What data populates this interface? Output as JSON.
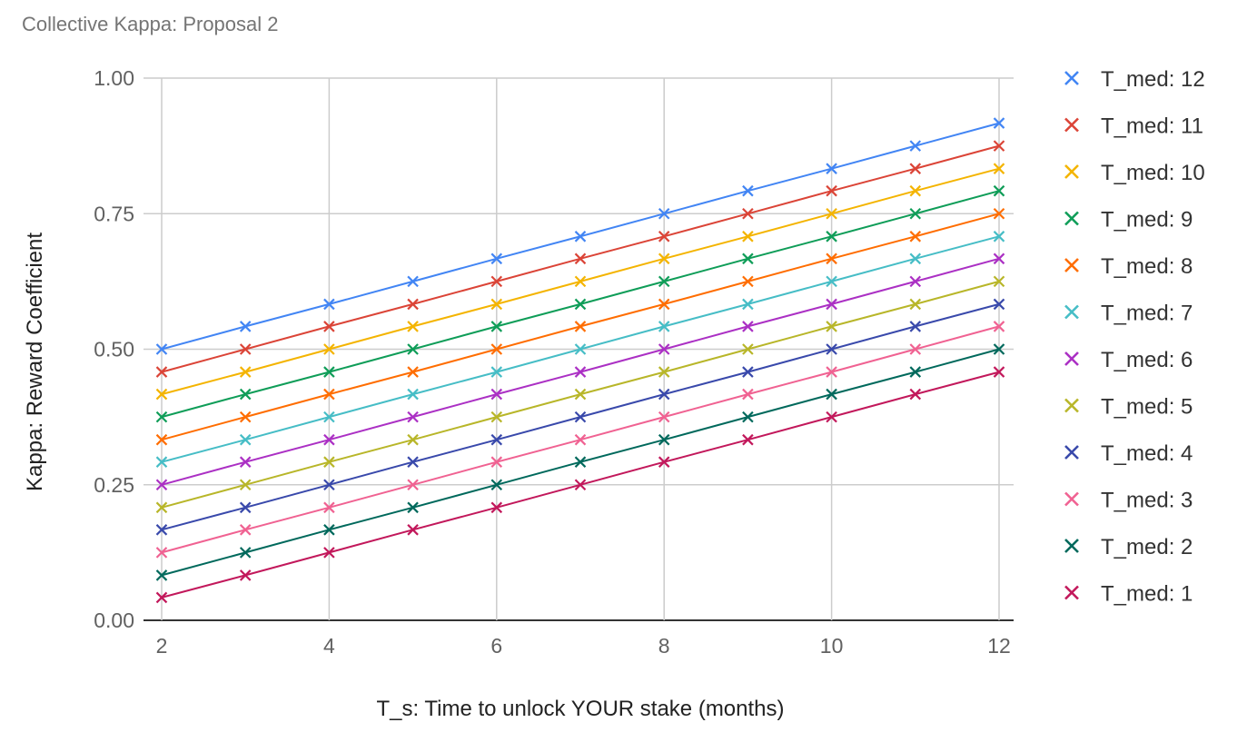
{
  "chart_data": {
    "type": "line",
    "title": "Collective Kappa: Proposal 2",
    "xlabel": "T_s: Time to unlock YOUR stake (months)",
    "ylabel": "Kappa: Reward Coefficient",
    "x": [
      2,
      3,
      4,
      5,
      6,
      7,
      8,
      9,
      10,
      11,
      12
    ],
    "xlim": [
      2,
      12
    ],
    "ylim": [
      0,
      1
    ],
    "x_ticks": [
      "2",
      "4",
      "6",
      "8",
      "10",
      "12"
    ],
    "y_ticks": [
      "0.00",
      "0.25",
      "0.50",
      "0.75",
      "1.00"
    ],
    "grid": true,
    "marker": "x",
    "legend_position": "right",
    "series": [
      {
        "name": "T_med: 12",
        "color": "#4285f4",
        "values": [
          0.5,
          0.542,
          0.583,
          0.625,
          0.667,
          0.708,
          0.75,
          0.792,
          0.833,
          0.875,
          0.917
        ]
      },
      {
        "name": "T_med: 11",
        "color": "#db4437",
        "values": [
          0.458,
          0.5,
          0.542,
          0.583,
          0.625,
          0.667,
          0.708,
          0.75,
          0.792,
          0.833,
          0.875
        ]
      },
      {
        "name": "T_med: 10",
        "color": "#f4b400",
        "values": [
          0.417,
          0.458,
          0.5,
          0.542,
          0.583,
          0.625,
          0.667,
          0.708,
          0.75,
          0.792,
          0.833
        ]
      },
      {
        "name": "T_med: 9",
        "color": "#0f9d58",
        "values": [
          0.375,
          0.417,
          0.458,
          0.5,
          0.542,
          0.583,
          0.625,
          0.667,
          0.708,
          0.75,
          0.792
        ]
      },
      {
        "name": "T_med: 8",
        "color": "#ff6d00",
        "values": [
          0.333,
          0.375,
          0.417,
          0.458,
          0.5,
          0.542,
          0.583,
          0.625,
          0.667,
          0.708,
          0.75
        ]
      },
      {
        "name": "T_med: 7",
        "color": "#46bdc6",
        "values": [
          0.292,
          0.333,
          0.375,
          0.417,
          0.458,
          0.5,
          0.542,
          0.583,
          0.625,
          0.667,
          0.708
        ]
      },
      {
        "name": "T_med: 6",
        "color": "#ab30c4",
        "values": [
          0.25,
          0.292,
          0.333,
          0.375,
          0.417,
          0.458,
          0.5,
          0.542,
          0.583,
          0.625,
          0.667
        ]
      },
      {
        "name": "T_med: 5",
        "color": "#b8b629",
        "values": [
          0.208,
          0.25,
          0.292,
          0.333,
          0.375,
          0.417,
          0.458,
          0.5,
          0.542,
          0.583,
          0.625
        ]
      },
      {
        "name": "T_med: 4",
        "color": "#3949ab",
        "values": [
          0.167,
          0.208,
          0.25,
          0.292,
          0.333,
          0.375,
          0.417,
          0.458,
          0.5,
          0.542,
          0.583
        ]
      },
      {
        "name": "T_med: 3",
        "color": "#f06292",
        "values": [
          0.125,
          0.167,
          0.208,
          0.25,
          0.292,
          0.333,
          0.375,
          0.417,
          0.458,
          0.5,
          0.542
        ]
      },
      {
        "name": "T_med: 2",
        "color": "#00695c",
        "values": [
          0.083,
          0.125,
          0.167,
          0.208,
          0.25,
          0.292,
          0.333,
          0.375,
          0.417,
          0.458,
          0.5
        ]
      },
      {
        "name": "T_med: 1",
        "color": "#c2185b",
        "values": [
          0.042,
          0.083,
          0.125,
          0.167,
          0.208,
          0.25,
          0.292,
          0.333,
          0.375,
          0.417,
          0.458
        ]
      }
    ]
  }
}
